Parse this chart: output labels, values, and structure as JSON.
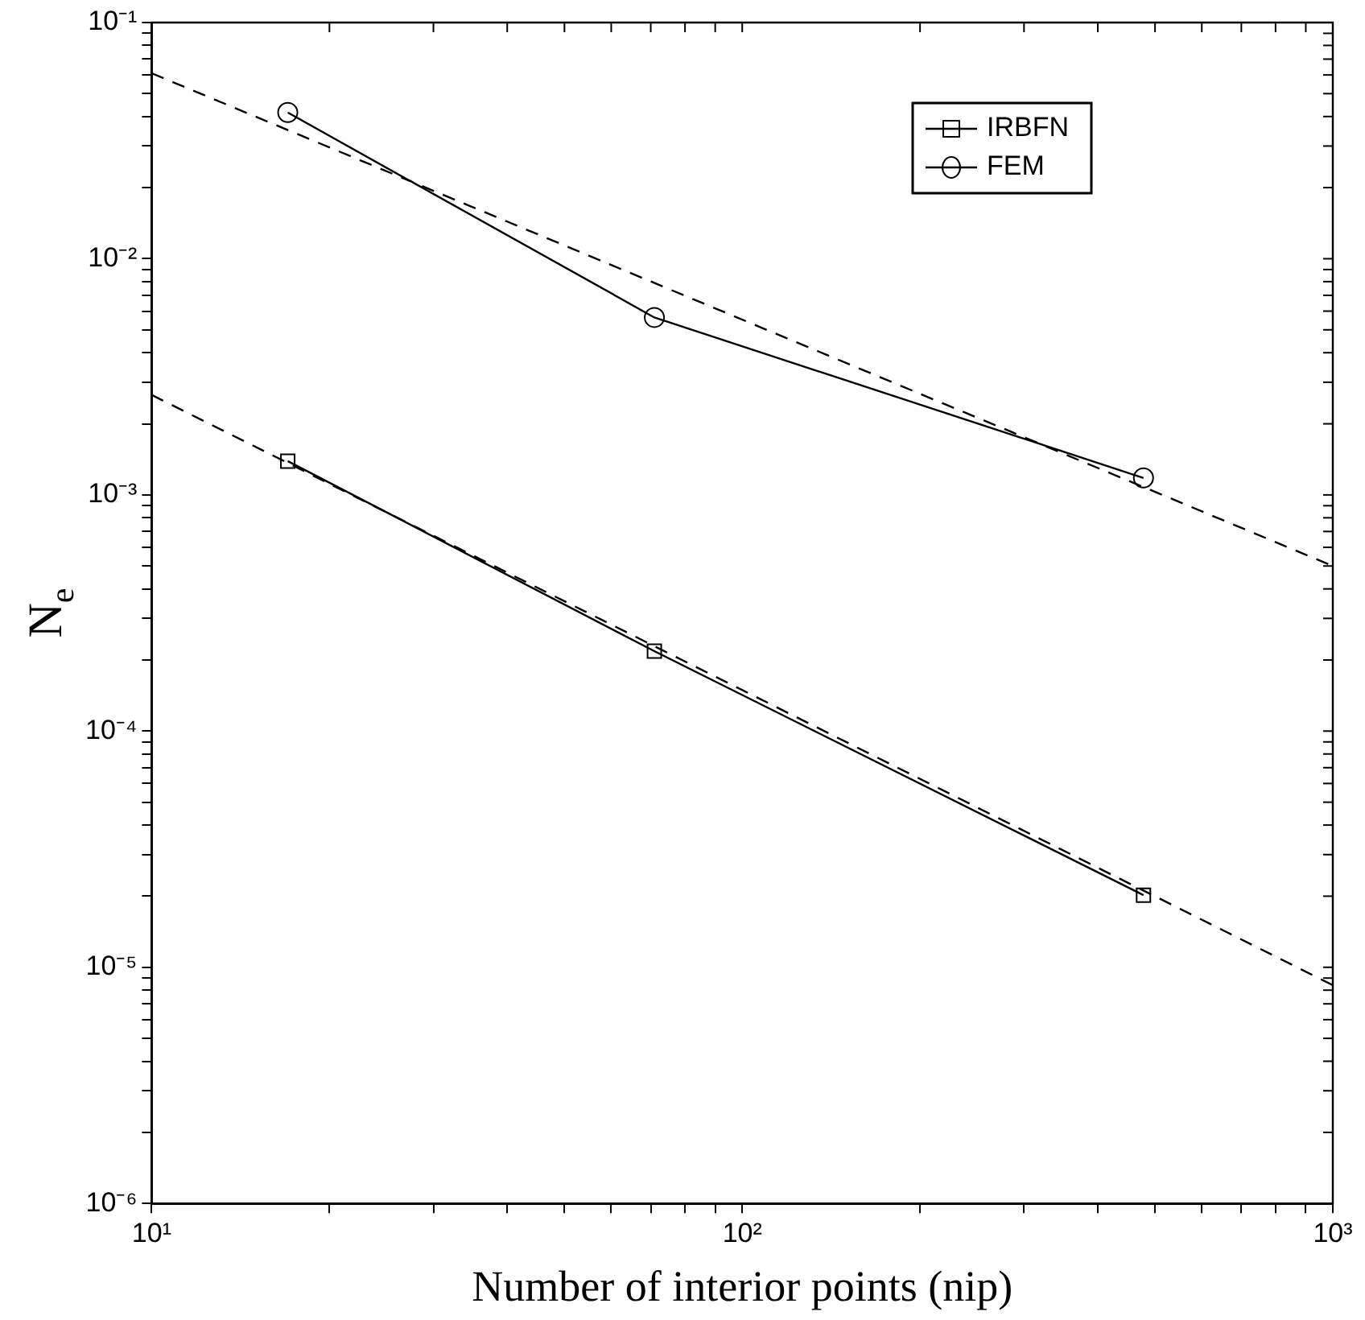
{
  "chart_data": {
    "type": "line",
    "xlabel": "Number of interior points (nip)",
    "ylabel": "N$_{e}$",
    "log": "xy",
    "xlim": [
      10,
      1000
    ],
    "ylim": [
      1e-06,
      0.1
    ],
    "xticks": [
      {
        "value": 10,
        "label": "10¹"
      },
      {
        "value": 20,
        "label": null
      },
      {
        "value": 30,
        "label": null
      },
      {
        "value": 40,
        "label": null
      },
      {
        "value": 50,
        "label": null
      },
      {
        "value": 60,
        "label": null
      },
      {
        "value": 70,
        "label": null
      },
      {
        "value": 80,
        "label": null
      },
      {
        "value": 90,
        "label": null
      },
      {
        "value": 100,
        "label": "10²"
      },
      {
        "value": 200,
        "label": null
      },
      {
        "value": 300,
        "label": null
      },
      {
        "value": 400,
        "label": null
      },
      {
        "value": 500,
        "label": null
      },
      {
        "value": 600,
        "label": null
      },
      {
        "value": 700,
        "label": null
      },
      {
        "value": 800,
        "label": null
      },
      {
        "value": 900,
        "label": null
      },
      {
        "value": 1000,
        "label": "10³"
      }
    ],
    "yticks": [
      {
        "value": 1e-06,
        "label": "10⁻⁶"
      },
      {
        "value": 2e-06,
        "label": null
      },
      {
        "value": 3e-06,
        "label": null
      },
      {
        "value": 4e-06,
        "label": null
      },
      {
        "value": 5e-06,
        "label": null
      },
      {
        "value": 6e-06,
        "label": null
      },
      {
        "value": 7e-06,
        "label": null
      },
      {
        "value": 8e-06,
        "label": null
      },
      {
        "value": 9e-06,
        "label": null
      },
      {
        "value": 1e-05,
        "label": "10⁻⁵"
      },
      {
        "value": 2e-05,
        "label": null
      },
      {
        "value": 3e-05,
        "label": null
      },
      {
        "value": 4e-05,
        "label": null
      },
      {
        "value": 5e-05,
        "label": null
      },
      {
        "value": 6e-05,
        "label": null
      },
      {
        "value": 7e-05,
        "label": null
      },
      {
        "value": 8e-05,
        "label": null
      },
      {
        "value": 9e-05,
        "label": null
      },
      {
        "value": 0.0001,
        "label": "10⁻⁴"
      },
      {
        "value": 0.0002,
        "label": null
      },
      {
        "value": 0.0003,
        "label": null
      },
      {
        "value": 0.0004,
        "label": null
      },
      {
        "value": 0.0005,
        "label": null
      },
      {
        "value": 0.0006,
        "label": null
      },
      {
        "value": 0.0007,
        "label": null
      },
      {
        "value": 0.0008,
        "label": null
      },
      {
        "value": 0.0009,
        "label": null
      },
      {
        "value": 0.001,
        "label": "10⁻³"
      },
      {
        "value": 0.002,
        "label": null
      },
      {
        "value": 0.003,
        "label": null
      },
      {
        "value": 0.004,
        "label": null
      },
      {
        "value": 0.005,
        "label": null
      },
      {
        "value": 0.006,
        "label": null
      },
      {
        "value": 0.007,
        "label": null
      },
      {
        "value": 0.008,
        "label": null
      },
      {
        "value": 0.009,
        "label": null
      },
      {
        "value": 0.01,
        "label": "10⁻²"
      },
      {
        "value": 0.02,
        "label": null
      },
      {
        "value": 0.03,
        "label": null
      },
      {
        "value": 0.04,
        "label": null
      },
      {
        "value": 0.05,
        "label": null
      },
      {
        "value": 0.06,
        "label": null
      },
      {
        "value": 0.07,
        "label": null
      },
      {
        "value": 0.08,
        "label": null
      },
      {
        "value": 0.09,
        "label": null
      },
      {
        "value": 0.1,
        "label": "10⁻¹"
      }
    ],
    "grid": false,
    "legend": "top right",
    "series": [
      {
        "name": "IRBFN",
        "color": "#000000",
        "marker": "square",
        "line_style": "solid",
        "x": [
          17,
          71,
          478
        ],
        "values": [
          0.00139,
          0.000218,
          2.02e-05
        ]
      },
      {
        "name": "FEM",
        "color": "#000000",
        "marker": "circle",
        "line_style": "solid",
        "x": [
          17,
          71,
          478
        ],
        "values": [
          0.0416,
          0.00564,
          0.00118
        ]
      },
      {
        "color": "#000000",
        "marker": "none",
        "line_style": "dashed",
        "x": [
          10,
          1000
        ],
        "values": [
          0.00265,
          8.4e-06
        ]
      },
      {
        "color": "#000000",
        "marker": "none",
        "line_style": "dashed",
        "x": [
          10,
          1000
        ],
        "values": [
          0.061,
          0.0005
        ]
      }
    ]
  }
}
